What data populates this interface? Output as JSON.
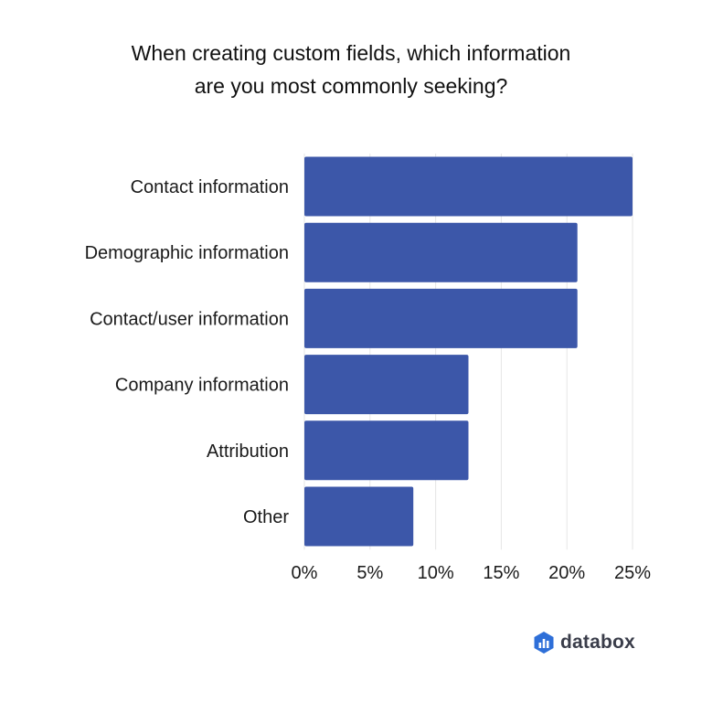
{
  "title_lines": [
    "When creating custom fields, which information",
    "are you most commonly seeking?"
  ],
  "brand": {
    "name": "databox",
    "icon": "databox-logo-icon"
  },
  "colors": {
    "bar": "#3c57a9",
    "grid": "#e6e6e6",
    "text": "#1a1a1a",
    "logo": "#2e6fd8"
  },
  "chart_data": {
    "type": "bar",
    "orientation": "horizontal",
    "categories": [
      "Contact information",
      "Demographic information",
      "Contact/user information",
      "Company information",
      "Attribution",
      "Other"
    ],
    "values": [
      25,
      20.8,
      20.8,
      12.5,
      12.5,
      8.3
    ],
    "xticks": [
      "0%",
      "5%",
      "10%",
      "15%",
      "20%",
      "25%"
    ],
    "xtick_values": [
      0,
      5,
      10,
      15,
      20,
      25
    ],
    "xlim": [
      0,
      25
    ],
    "grid": true,
    "legend": "none"
  }
}
